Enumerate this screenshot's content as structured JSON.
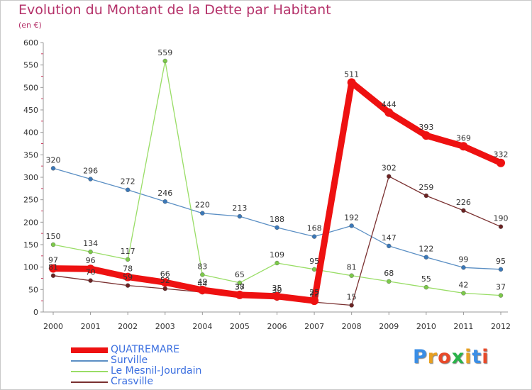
{
  "title": "Evolution du Montant de la Dette par Habitant",
  "subtitle": "(en €)",
  "logo": {
    "text": "Proxiti",
    "colors": [
      "#3a8ee6",
      "#e8a020",
      "#e84a2a",
      "#2ab34a",
      "#e8a020",
      "#3a8ee6",
      "#e84a2a"
    ]
  },
  "chart_data": {
    "type": "line",
    "x": [
      "2000",
      "2001",
      "2002",
      "2003",
      "2004",
      "2005",
      "2006",
      "2007",
      "2008",
      "2009",
      "2010",
      "2011",
      "2012"
    ],
    "ylim": [
      0,
      600
    ],
    "yticks": [
      "0",
      "50",
      "100",
      "150",
      "200",
      "250",
      "300",
      "350",
      "400",
      "450",
      "500",
      "550",
      "600"
    ],
    "grid": false,
    "legend_position": "bottom-left",
    "series": [
      {
        "name": "Surville",
        "color": "#5b8fc4",
        "marker": "#3b78b8",
        "thick": false,
        "values": [
          320,
          296,
          272,
          246,
          220,
          213,
          188,
          168,
          192,
          147,
          122,
          99,
          95
        ],
        "labels": [
          "320",
          "296",
          "272",
          "246",
          "220",
          "213",
          "188",
          "168",
          "192",
          "147",
          "122",
          "99",
          "95"
        ]
      },
      {
        "name": "Le Mesnil-Jourdain",
        "color": "#99dd66",
        "marker": "#7cc94a",
        "thick": false,
        "values": [
          150,
          134,
          117,
          559,
          83,
          65,
          109,
          95,
          81,
          68,
          55,
          42,
          37
        ],
        "labels": [
          "150",
          "134",
          "117",
          "559",
          "83",
          "65",
          "109",
          "95",
          "81",
          "68",
          "55",
          "42",
          "37"
        ]
      },
      {
        "name": "Crasville",
        "color": "#7a3030",
        "marker": "#6b2323",
        "thick": false,
        "values": [
          81,
          70,
          59,
          52,
          44,
          37,
          30,
          22,
          15,
          302,
          259,
          226,
          190
        ],
        "labels": [
          "81",
          "70",
          "59",
          "52",
          "44",
          "37",
          "30",
          "22",
          "15",
          "302",
          "259",
          "226",
          "190"
        ]
      },
      {
        "name": "QUATREMARE",
        "color": "#ee1111",
        "marker": "#ee1111",
        "thick": true,
        "values": [
          97,
          96,
          78,
          66,
          49,
          38,
          35,
          25,
          511,
          444,
          393,
          369,
          332
        ],
        "labels": [
          "97",
          "96",
          "78",
          "66",
          "49",
          "38",
          "35",
          "25",
          "511",
          "444",
          "393",
          "369",
          "332"
        ]
      }
    ],
    "legend": [
      {
        "name": "QUATREMARE",
        "color": "#ee1111",
        "thick": true
      },
      {
        "name": "Surville",
        "color": "#5b8fc4",
        "thick": false
      },
      {
        "name": "Le Mesnil-Jourdain",
        "color": "#99dd66",
        "thick": false
      },
      {
        "name": "Crasville",
        "color": "#7a3030",
        "thick": false
      }
    ]
  }
}
